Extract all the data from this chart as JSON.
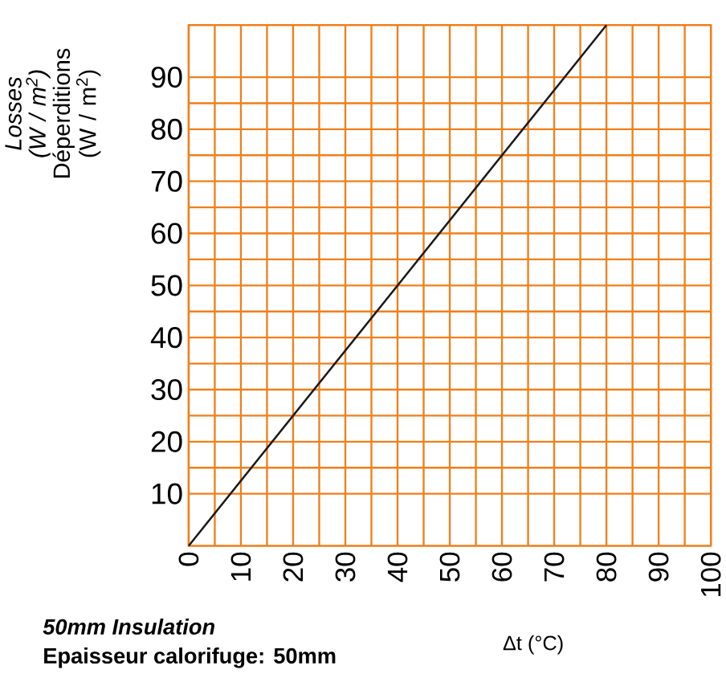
{
  "chart_data": {
    "type": "line",
    "xlabel": "Δt (°C)",
    "ylabel": "*Losses (W / m$^{2}$)* Déperditions (W / m$^{2}$)",
    "annotations": [
      "50mm Insulation",
      "Epaisseur calorifuge: 50mm"
    ],
    "x": [
      0,
      80
    ],
    "values": [
      0,
      100
    ],
    "color": "#1a1a1a",
    "xlim": [
      0,
      100
    ],
    "ylim": [
      0,
      100
    ],
    "xticks": [
      0,
      10,
      20,
      30,
      40,
      50,
      60,
      70,
      80,
      90,
      100
    ],
    "yticks": [
      10,
      20,
      30,
      40,
      50,
      60,
      70,
      80,
      90
    ],
    "grid": true,
    "marker": "none",
    "line_style": "solid"
  }
}
